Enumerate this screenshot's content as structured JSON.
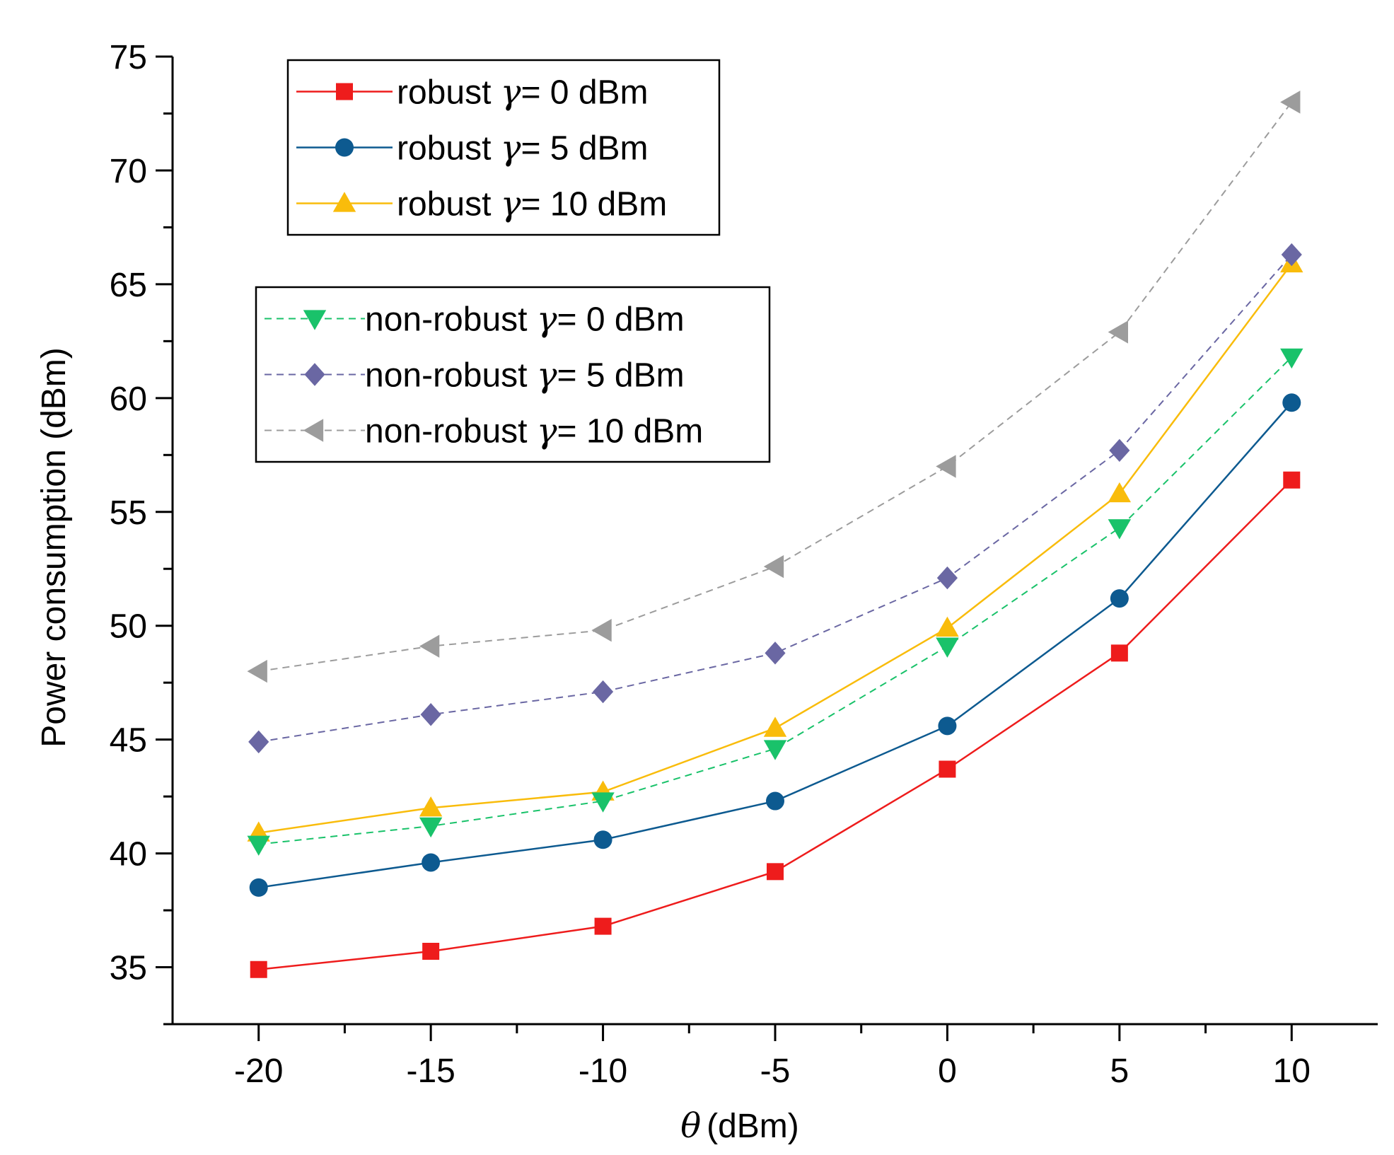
{
  "chart_data": {
    "type": "line",
    "title": "",
    "xlabel_symbol": "θ",
    "xlabel_unit": "(dBm)",
    "ylabel": "Power consumption (dBm)",
    "xlim": [
      -22.5,
      12.5
    ],
    "ylim": [
      32.5,
      75
    ],
    "x_ticks": [
      -20,
      -15,
      -10,
      -5,
      0,
      5,
      10
    ],
    "y_ticks": [
      35,
      40,
      45,
      50,
      55,
      60,
      65,
      70,
      75
    ],
    "x": [
      -20,
      -15,
      -10,
      -5,
      0,
      5,
      10
    ],
    "gamma_symbol": "γ",
    "series": [
      {
        "name": "robust γ= 0 dBm",
        "legend_prefix": "robust",
        "legend_suffix": "= 0 dBm",
        "legend_group": 1,
        "color": "#ee1c1c",
        "marker": "square",
        "dashed": false,
        "values": [
          34.9,
          35.7,
          36.8,
          39.2,
          43.7,
          48.8,
          56.4
        ]
      },
      {
        "name": "robust γ= 5 dBm",
        "legend_prefix": "robust",
        "legend_suffix": "= 5 dBm",
        "legend_group": 1,
        "color": "#0d5a90",
        "marker": "circle",
        "dashed": false,
        "values": [
          38.5,
          39.6,
          40.6,
          42.3,
          45.6,
          51.2,
          59.8
        ]
      },
      {
        "name": "robust γ= 10 dBm",
        "legend_prefix": "robust",
        "legend_suffix": "= 10 dBm",
        "legend_group": 1,
        "color": "#f9bc0b",
        "marker": "triangle-up",
        "dashed": false,
        "values": [
          40.9,
          42.0,
          42.7,
          45.5,
          49.9,
          55.8,
          65.9
        ]
      },
      {
        "name": "non-robust γ= 0 dBm",
        "legend_prefix": "non-robust",
        "legend_suffix": "= 0 dBm",
        "legend_group": 2,
        "color": "#19c26a",
        "marker": "triangle-down",
        "dashed": true,
        "values": [
          40.4,
          41.2,
          42.3,
          44.6,
          49.1,
          54.3,
          61.8
        ]
      },
      {
        "name": "non-robust γ= 5 dBm",
        "legend_prefix": "non-robust",
        "legend_suffix": "= 5 dBm",
        "legend_group": 2,
        "color": "#6a67a3",
        "marker": "diamond",
        "dashed": true,
        "values": [
          44.9,
          46.1,
          47.1,
          48.8,
          52.1,
          57.7,
          66.3
        ]
      },
      {
        "name": "non-robust γ= 10 dBm",
        "legend_prefix": "non-robust",
        "legend_suffix": "= 10 dBm",
        "legend_group": 2,
        "color": "#9c9c9c",
        "marker": "triangle-left",
        "dashed": true,
        "values": [
          48.0,
          49.1,
          49.8,
          52.6,
          57.0,
          62.9,
          73.0
        ]
      }
    ],
    "legend_placement": "top-left (two boxes)",
    "grid": false
  }
}
